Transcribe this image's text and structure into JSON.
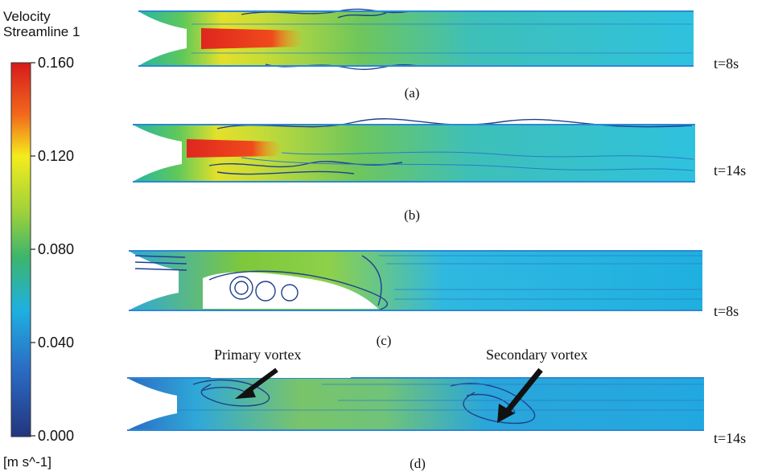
{
  "legend": {
    "title_line1": "Velocity",
    "title_line2": "Streamline 1",
    "ticks": [
      "0.160",
      "0.120",
      "0.080",
      "0.040",
      "0.000"
    ],
    "unit": "[m s^-1]",
    "gradient": [
      "#d7191c",
      "#f4a31a",
      "#f4ec1c",
      "#7ec83a",
      "#32b27a",
      "#1fb0e0",
      "#2b6cc4",
      "#23357f"
    ]
  },
  "panels": [
    {
      "id": "a",
      "caption": "(a)",
      "time": "t=8s"
    },
    {
      "id": "b",
      "caption": "(b)",
      "time": "t=14s"
    },
    {
      "id": "c",
      "caption": "(c)",
      "time": "t=8s"
    },
    {
      "id": "d",
      "caption": "(d)",
      "time": "t=14s"
    }
  ],
  "annotations": {
    "primary": "Primary vortex",
    "secondary": "Secondary vortex"
  }
}
